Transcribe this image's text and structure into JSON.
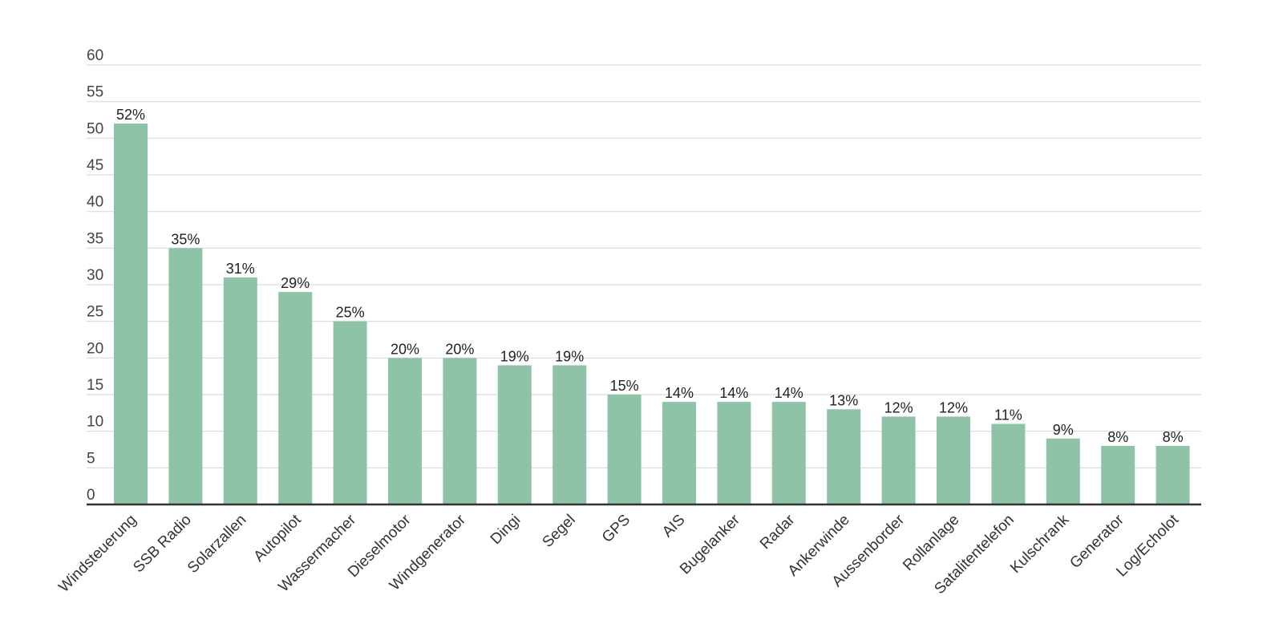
{
  "chart_data": {
    "type": "bar",
    "title": "",
    "xlabel": "",
    "ylabel": "",
    "ylim": [
      0,
      60
    ],
    "yticks": [
      0,
      5,
      10,
      15,
      20,
      25,
      30,
      35,
      40,
      45,
      50,
      55,
      60
    ],
    "grid": true,
    "legend": "none",
    "bar_color": "#8fc3a7",
    "categories": [
      "Windsteuerung",
      "SSB Radio",
      "Solarzallen",
      "Autopilot",
      "Wassermacher",
      "Dieselmotor",
      "Windgenerator",
      "Dingi",
      "Segel",
      "GPS",
      "AIS",
      "Bugelanker",
      "Radar",
      "Ankerwinde",
      "Aussenborder",
      "Rollanlage",
      "Satalitentelefon",
      "Kulschrank",
      "Generator",
      "Log/Echolot"
    ],
    "values": [
      52,
      35,
      31,
      29,
      25,
      20,
      20,
      19,
      19,
      15,
      14,
      14,
      14,
      13,
      12,
      12,
      11,
      9,
      8,
      8
    ],
    "data_labels": [
      "52%",
      "35%",
      "31%",
      "29%",
      "25%",
      "20%",
      "20%",
      "19%",
      "19%",
      "15%",
      "14%",
      "14%",
      "14%",
      "13%",
      "12%",
      "12%",
      "11%",
      "9%",
      "8%",
      "8%"
    ]
  }
}
